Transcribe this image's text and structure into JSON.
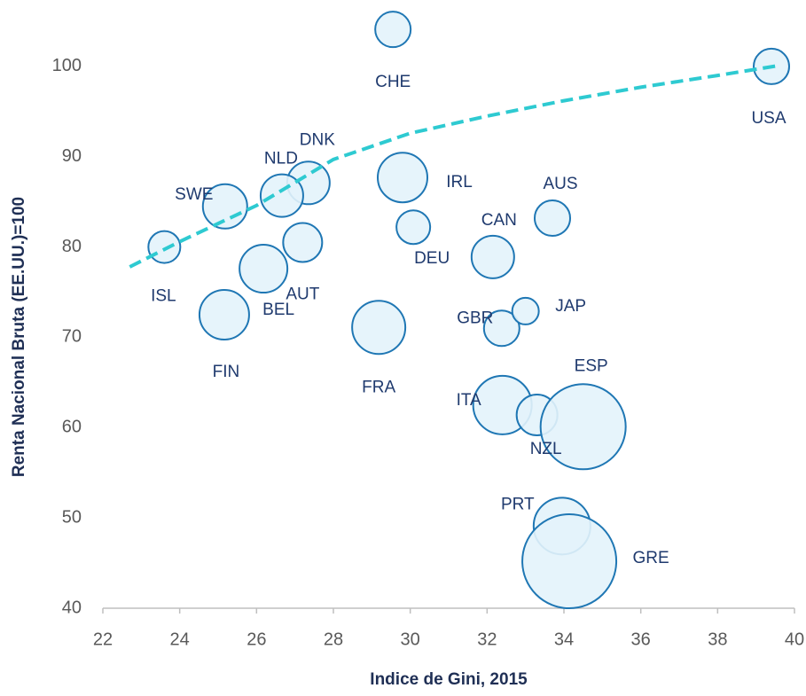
{
  "chart_data": {
    "type": "bubble",
    "xlabel": "Indice de Gini, 2015",
    "ylabel": "Renta Nacional  Bruta (EE.UU.)=100",
    "xlim": [
      22,
      40
    ],
    "xticks": [
      22,
      24,
      26,
      28,
      30,
      32,
      34,
      36,
      38,
      40
    ],
    "ylim": [
      40,
      105
    ],
    "yticks": [
      40,
      50,
      60,
      70,
      80,
      90,
      100
    ],
    "grid": false,
    "color": "#1f77b4",
    "fill": "#e3f3fb",
    "points": {
      "labels": [
        "CHE",
        "USA",
        "DNK",
        "NLD",
        "SWE",
        "ISL",
        "IRL",
        "DEU",
        "AUS",
        "CAN",
        "AUT",
        "BEL",
        "FIN",
        "FRA",
        "GBR",
        "JAP",
        "ITA",
        "NZL",
        "ESP",
        "PRT",
        "GRE"
      ],
      "x": [
        29.55,
        39.4,
        27.35,
        26.66,
        25.18,
        23.6,
        29.8,
        30.08,
        33.7,
        32.15,
        27.2,
        26.18,
        25.16,
        29.18,
        32.38,
        33.0,
        32.4,
        33.3,
        34.5,
        33.95,
        34.14
      ],
      "y": [
        104.1,
        100,
        87.1,
        85.7,
        84.5,
        80.0,
        87.7,
        82.2,
        83.2,
        78.9,
        80.5,
        77.6,
        72.5,
        71.1,
        71.0,
        72.9,
        62.5,
        61.4,
        60.1,
        49.1,
        45.2
      ],
      "sizes": [
        20,
        20,
        24,
        24,
        25,
        18,
        28,
        19,
        20,
        24,
        22,
        27,
        28,
        30,
        20,
        15,
        33,
        23,
        48,
        32,
        53
      ]
    },
    "trendline": {
      "color": "#2ecad1",
      "x": [
        22.7,
        24,
        26,
        28,
        30,
        32,
        34,
        36,
        38,
        39.6
      ],
      "y": [
        77.8,
        80.6,
        84.6,
        89.7,
        92.6,
        94.5,
        96.2,
        97.7,
        99.0,
        100.1
      ]
    }
  }
}
